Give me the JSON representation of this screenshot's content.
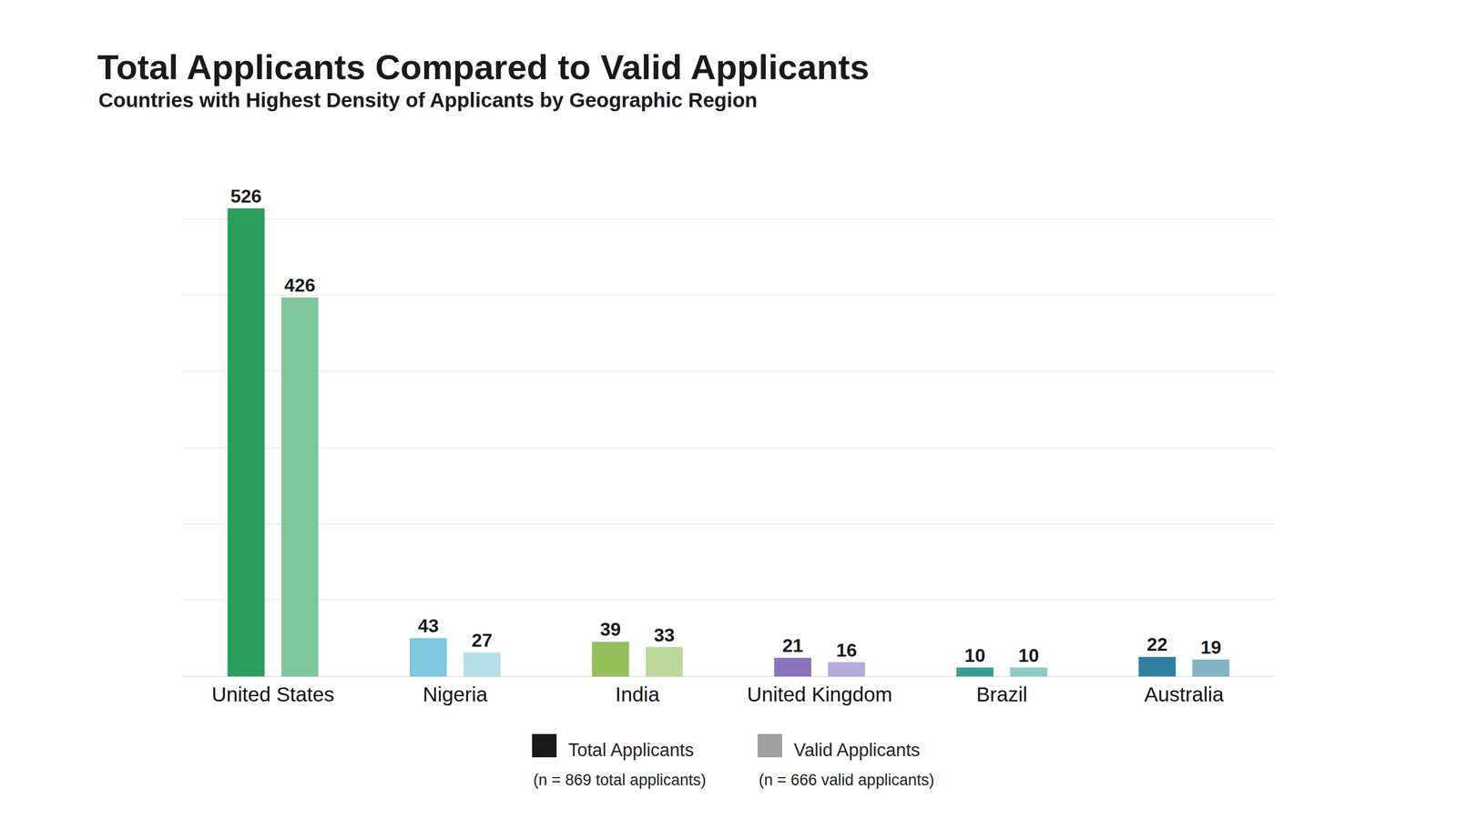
{
  "chart_data": {
    "type": "bar",
    "title": "Total Applicants Compared to Valid Applicants",
    "subtitle": "Countries with Highest Density of Applicants by Geographic Region",
    "categories": [
      "United States",
      "Nigeria",
      "India",
      "United Kingdom",
      "Brazil",
      "Australia"
    ],
    "series": [
      {
        "name": "Total Applicants",
        "color": "#1a1a1a",
        "note": "(n = 869 total applicants)",
        "values": [
          526,
          43,
          39,
          21,
          10,
          22
        ],
        "colors": [
          "#2a9d5c",
          "#7ec8e0",
          "#93c05a",
          "#8b72bd",
          "#3a9e96",
          "#2e7fa0"
        ]
      },
      {
        "name": "Valid Applicants",
        "color": "#a0a0a0",
        "note": "(n = 666 valid applicants)",
        "values": [
          426,
          27,
          33,
          16,
          10,
          19
        ],
        "colors": [
          "#7fc59c",
          "#b6dfec",
          "#bcd99a",
          "#b8a8d8",
          "#8ccbc6",
          "#85b3c6"
        ]
      }
    ],
    "ylim": [
      0,
      600
    ],
    "yticks": [
      0,
      86,
      171,
      257,
      343,
      429,
      514,
      600
    ],
    "grid": true,
    "tick_labels": "x",
    "data_labels": true
  }
}
